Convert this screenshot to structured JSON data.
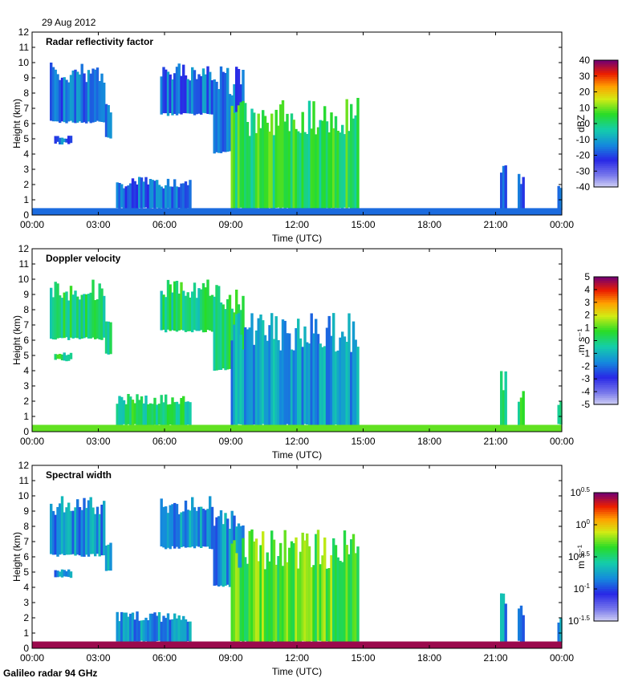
{
  "date": "29 Aug 2012",
  "footer": "Galileo radar 94 GHz",
  "chart_data": [
    {
      "type": "heatmap",
      "title": "Radar reflectivity factor",
      "xlabel": "Time (UTC)",
      "ylabel": "Height (km)",
      "x_ticklabels": [
        "00:00",
        "03:00",
        "06:00",
        "09:00",
        "12:00",
        "15:00",
        "18:00",
        "21:00",
        "00:00"
      ],
      "y_ticklabels": [
        "0",
        "1",
        "2",
        "3",
        "4",
        "5",
        "6",
        "7",
        "8",
        "9",
        "10",
        "11",
        "12"
      ],
      "ylim": [
        0,
        12
      ],
      "colorbar": {
        "unit": "dBZ",
        "range": [
          -40,
          40
        ],
        "ticklabels": [
          "40",
          "30",
          "20",
          "10",
          "0",
          "-10",
          "-20",
          "-30",
          "-40"
        ]
      }
    },
    {
      "type": "heatmap",
      "title": "Doppler velocity",
      "xlabel": "Time (UTC)",
      "ylabel": "Height (km)",
      "x_ticklabels": [
        "00:00",
        "03:00",
        "06:00",
        "09:00",
        "12:00",
        "15:00",
        "18:00",
        "21:00",
        "00:00"
      ],
      "y_ticklabels": [
        "0",
        "1",
        "2",
        "3",
        "4",
        "5",
        "6",
        "7",
        "8",
        "9",
        "10",
        "11",
        "12"
      ],
      "ylim": [
        0,
        12
      ],
      "colorbar": {
        "unit": "m s⁻¹",
        "range": [
          -5,
          5
        ],
        "ticklabels": [
          "5",
          "4",
          "3",
          "2",
          "1",
          "0",
          "-1",
          "-2",
          "-3",
          "-4",
          "-5"
        ]
      }
    },
    {
      "type": "heatmap",
      "title": "Spectral width",
      "xlabel": "Time (UTC)",
      "ylabel": "Height (km)",
      "x_ticklabels": [
        "00:00",
        "03:00",
        "06:00",
        "09:00",
        "12:00",
        "15:00",
        "18:00",
        "21:00",
        "00:00"
      ],
      "y_ticklabels": [
        "0",
        "1",
        "2",
        "3",
        "4",
        "5",
        "6",
        "7",
        "8",
        "9",
        "10",
        "11",
        "12"
      ],
      "ylim": [
        0,
        12
      ],
      "scale": "log",
      "colorbar": {
        "unit": "m s⁻¹",
        "range": [
          -1.5,
          0.5
        ],
        "ticklabels": [
          "10^0.5",
          "10^0",
          "10^-0.5",
          "10^-1",
          "10^-1.5"
        ]
      }
    }
  ]
}
